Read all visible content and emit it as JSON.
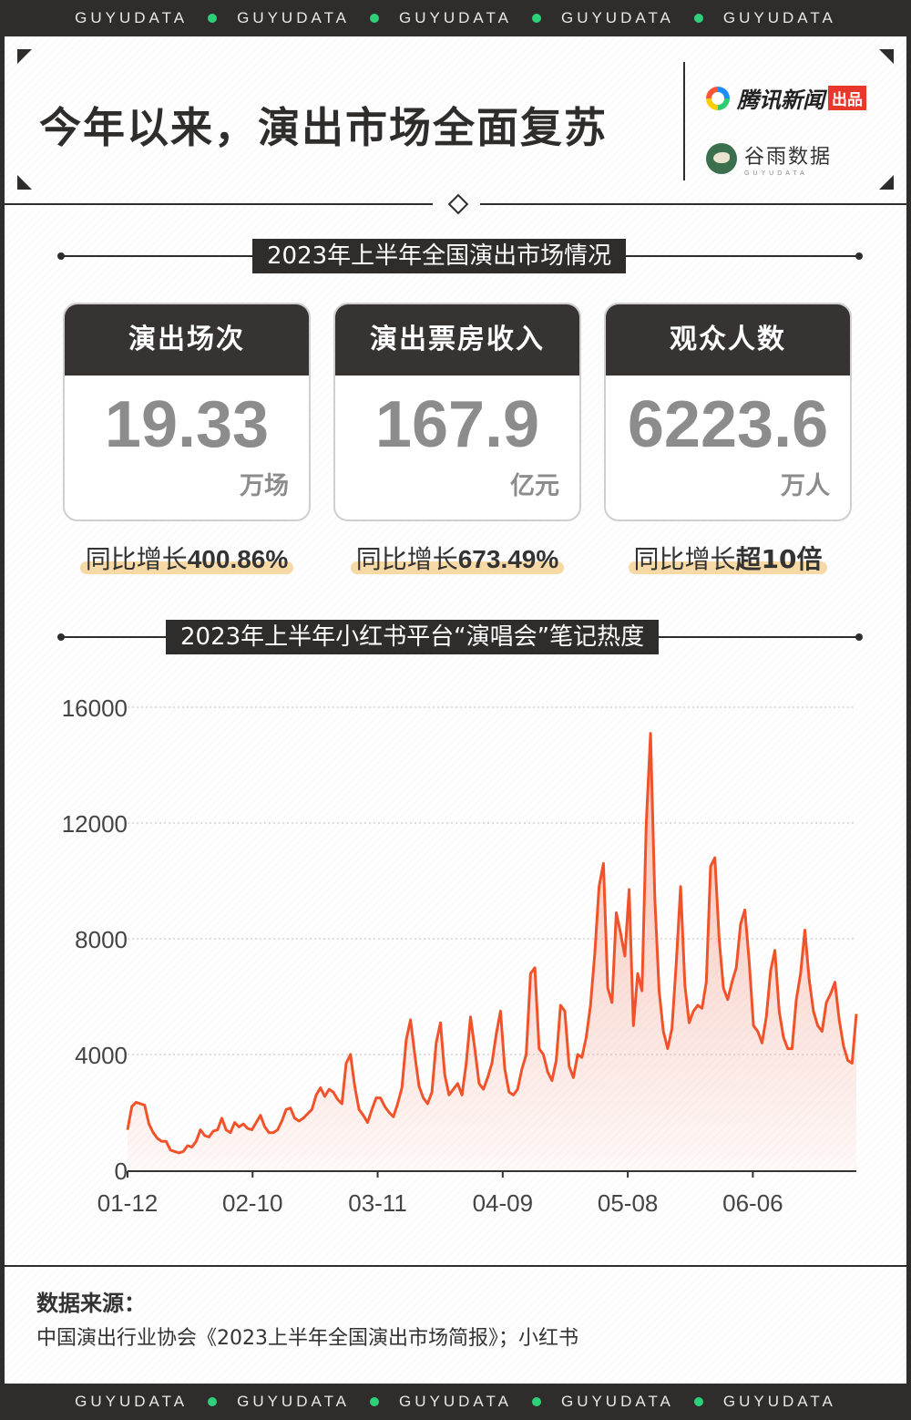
{
  "brand_band": [
    "GUYUDATA",
    "GUYUDATA",
    "GUYUDATA",
    "GUYUDATA",
    "GUYUDATA"
  ],
  "header": {
    "title": "今年以来，演出市场全面复苏",
    "brand1": {
      "name": "腾讯新闻",
      "badge": "出品"
    },
    "brand2": {
      "name": "谷雨数据",
      "sub": "GUYUDATA"
    }
  },
  "section1": {
    "title": "2023年上半年全国演出市场情况"
  },
  "stats": [
    {
      "label": "演出场次",
      "value": "19.33",
      "unit": "万场",
      "growth_label": "同比增长",
      "growth_value": "400.86%"
    },
    {
      "label": "演出票房收入",
      "value": "167.9",
      "unit": "亿元",
      "growth_label": "同比增长",
      "growth_value": "673.49%"
    },
    {
      "label": "观众人数",
      "value": "6223.6",
      "unit": "万人",
      "growth_label": "同比增长",
      "growth_value": "超10倍"
    }
  ],
  "section2": {
    "title": "2023年上半年小红书平台“演唱会”笔记热度"
  },
  "colors": {
    "line": "#f0532a",
    "fill_top": "#f6b4a5",
    "dark": "#2f2d2c",
    "accent": "#2fd07a"
  },
  "chart_data": {
    "type": "area",
    "title": "2023年上半年小红书平台“演唱会”笔记热度",
    "xlabel": "",
    "ylabel": "",
    "ylim": [
      0,
      16000
    ],
    "y_ticks": [
      "0",
      "4000",
      "8000",
      "12000",
      "16000"
    ],
    "x_ticks": [
      "01-12",
      "02-10",
      "03-11",
      "04-09",
      "05-08",
      "06-06"
    ],
    "x_start": "2023-01-12",
    "x_end": "2023-06-30",
    "values": [
      1400,
      2200,
      2350,
      2300,
      2250,
      1600,
      1300,
      1100,
      1000,
      1000,
      700,
      650,
      600,
      650,
      850,
      800,
      1000,
      1400,
      1200,
      1150,
      1350,
      1400,
      1800,
      1400,
      1300,
      1650,
      1500,
      1600,
      1450,
      1400,
      1650,
      1900,
      1500,
      1300,
      1300,
      1400,
      1700,
      2100,
      2150,
      1800,
      1700,
      1800,
      1950,
      2100,
      2600,
      2850,
      2550,
      2800,
      2700,
      2450,
      2300,
      3700,
      4000,
      2900,
      2100,
      1900,
      1650,
      2100,
      2500,
      2500,
      2200,
      2000,
      1850,
      2300,
      2850,
      4500,
      5200,
      4000,
      2900,
      2500,
      2300,
      2700,
      4400,
      5100,
      3300,
      2600,
      2800,
      3000,
      2600,
      3700,
      5300,
      4200,
      3000,
      2800,
      3200,
      3700,
      4700,
      5500,
      3500,
      2700,
      2600,
      2800,
      3500,
      4000,
      6800,
      7000,
      4200,
      4000,
      3400,
      3100,
      3800,
      5700,
      5500,
      3600,
      3200,
      4000,
      3900,
      4600,
      5700,
      7500,
      9800,
      10600,
      6300,
      5800,
      8900,
      8200,
      7400,
      9700,
      5000,
      6800,
      6200,
      12000,
      15100,
      9400,
      6200,
      4800,
      4200,
      4900,
      7200,
      9800,
      6400,
      5100,
      5500,
      5700,
      5600,
      6500,
      10500,
      10800,
      8000,
      6300,
      5900,
      6500,
      7000,
      8500,
      9000,
      7200,
      5000,
      4800,
      4400,
      5300,
      6900,
      7600,
      5500,
      4600,
      4200,
      4200,
      5900,
      6800,
      8300,
      6600,
      5500,
      5000,
      4800,
      5800,
      6100,
      6500,
      5200,
      4300,
      3800,
      3700,
      5400
    ]
  },
  "source": {
    "label": "数据来源：",
    "text": "中国演出行业协会《2023上半年全国演出市场简报》；小红书"
  }
}
